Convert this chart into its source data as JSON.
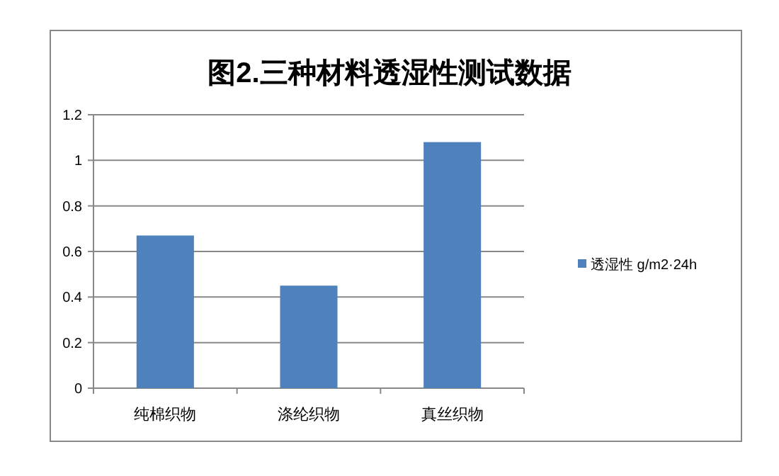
{
  "chart_data": {
    "type": "bar",
    "title": "图2.三种材料透湿性测试数据",
    "categories": [
      "纯棉织物",
      "涤纶织物",
      "真丝织物"
    ],
    "series": [
      {
        "name": "透湿性  g/m2·24h",
        "color": "#4f81bd",
        "values": [
          0.67,
          0.45,
          1.08
        ]
      }
    ],
    "ylim": [
      0,
      1.2
    ],
    "yticks": [
      0,
      0.2,
      0.4,
      0.6,
      0.8,
      1,
      1.2
    ],
    "grid": "y",
    "legend": "right"
  }
}
